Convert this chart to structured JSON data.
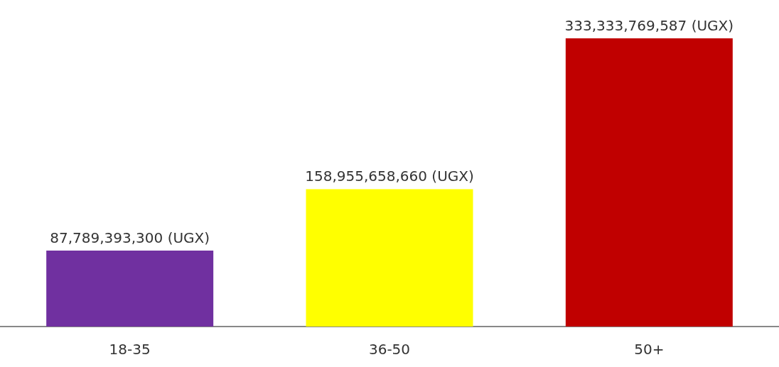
{
  "chart_data": {
    "type": "bar",
    "categories": [
      "18-35",
      "36-50",
      "50+"
    ],
    "values": [
      87789393300,
      158955658660,
      333333769587
    ],
    "colors": [
      "#7030a0",
      "#ffff00",
      "#c00000"
    ],
    "value_labels": [
      "87,789,393,300 (UGX)",
      "158,955,658,660 (UGX)",
      "333,333,769,587 (UGX)"
    ],
    "grid": false,
    "tick_labels": "x"
  }
}
